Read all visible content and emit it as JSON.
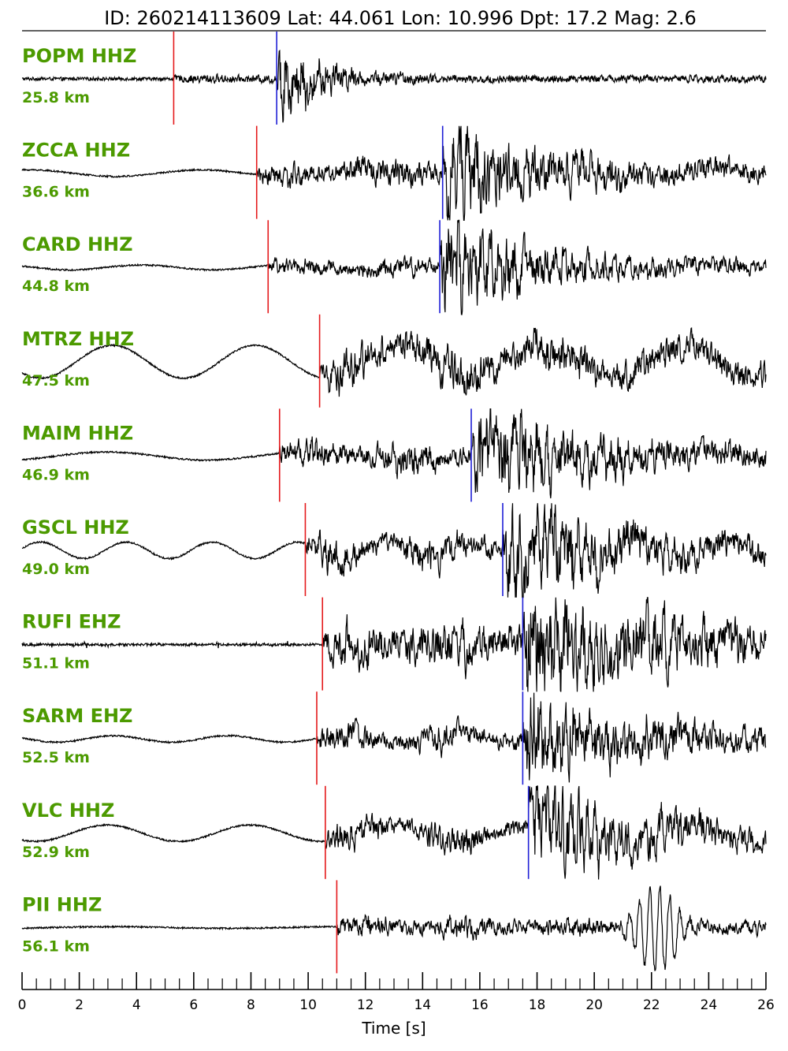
{
  "chart_data": {
    "type": "line",
    "title": "ID: 260214113609 Lat:  44.061 Lon:  10.996 Dpt:    17.2 Mag:   2.6",
    "xlabel": "Time [s]",
    "xlim": [
      0,
      26
    ],
    "x_major_ticks": [
      0,
      2,
      4,
      6,
      8,
      10,
      12,
      14,
      16,
      18,
      20,
      22,
      24,
      26
    ],
    "x_tick_labels": [
      "0",
      "2",
      "4",
      "6",
      "8",
      "10",
      "12",
      "14",
      "16",
      "18",
      "20",
      "22",
      "24",
      "26"
    ],
    "x_minor_step": 0.5,
    "colors": {
      "waveform": "#000000",
      "p_pick": "#e41a1c",
      "s_pick": "#1f1fd6",
      "label": "#4c9a00"
    },
    "traces": [
      {
        "station": "POPM HHZ",
        "distance": "25.8 km",
        "p_time": 5.3,
        "s_time": 8.9,
        "noise": 0.04,
        "p_amp": 0.08,
        "s_amp": 1.0,
        "s_decay": 1.4,
        "coda": 0.12,
        "osc_amp": 0.0,
        "osc_period": 5.0,
        "spiky": false
      },
      {
        "station": "ZCCA HHZ",
        "distance": "36.6 km",
        "p_time": 8.2,
        "s_time": 14.7,
        "noise": 0.02,
        "p_amp": 0.3,
        "s_amp": 0.95,
        "s_decay": 3.0,
        "coda": 0.5,
        "osc_amp": 0.08,
        "osc_period": 6.0,
        "spiky": false
      },
      {
        "station": "CARD HHZ",
        "distance": "44.8 km",
        "p_time": 8.6,
        "s_time": 14.6,
        "noise": 0.02,
        "p_amp": 0.22,
        "s_amp": 0.95,
        "s_decay": 3.5,
        "coda": 0.3,
        "osc_amp": 0.06,
        "osc_period": 5.0,
        "spiky": false
      },
      {
        "station": "MTRZ HHZ",
        "distance": "47.5 km",
        "p_time": 10.4,
        "s_time": null,
        "noise": 0.02,
        "p_amp": 0.45,
        "s_amp": 0.0,
        "s_decay": 3.0,
        "coda": 0.75,
        "osc_amp": 0.4,
        "osc_period": 5.0,
        "spiky": false
      },
      {
        "station": "MAIM HHZ",
        "distance": "46.9 km",
        "p_time": 9.0,
        "s_time": 15.7,
        "noise": 0.02,
        "p_amp": 0.4,
        "s_amp": 0.95,
        "s_decay": 4.0,
        "coda": 0.45,
        "osc_amp": 0.1,
        "osc_period": 7.0,
        "spiky": false
      },
      {
        "station": "GSCL HHZ",
        "distance": "49.0 km",
        "p_time": 9.9,
        "s_time": 16.8,
        "noise": 0.02,
        "p_amp": 0.45,
        "s_amp": 0.95,
        "s_decay": 4.0,
        "coda": 0.45,
        "osc_amp": 0.2,
        "osc_period": 3.0,
        "spiky": false
      },
      {
        "station": "RUFI EHZ",
        "distance": "51.1 km",
        "p_time": 10.5,
        "s_time": 17.5,
        "noise": 0.03,
        "p_amp": 0.5,
        "s_amp": 0.9,
        "s_decay": 5.0,
        "coda": 0.75,
        "osc_amp": 0.0,
        "osc_period": 5.0,
        "spiky": true
      },
      {
        "station": "SARM EHZ",
        "distance": "52.5 km",
        "p_time": 10.3,
        "s_time": 17.5,
        "noise": 0.02,
        "p_amp": 0.4,
        "s_amp": 0.95,
        "s_decay": 4.0,
        "coda": 0.35,
        "osc_amp": 0.08,
        "osc_period": 4.0,
        "spiky": false
      },
      {
        "station": "VLC HHZ",
        "distance": "52.9 km",
        "p_time": 10.6,
        "s_time": 17.7,
        "noise": 0.02,
        "p_amp": 0.4,
        "s_amp": 0.95,
        "s_decay": 4.0,
        "coda": 0.35,
        "osc_amp": 0.2,
        "osc_period": 5.0,
        "spiky": false
      },
      {
        "station": "PII HHZ",
        "distance": "56.1 km",
        "p_time": 11.0,
        "s_time": null,
        "noise": 0.02,
        "p_amp": 0.3,
        "s_amp": 0.0,
        "s_decay": 3.0,
        "coda": 0.3,
        "osc_amp": 0.02,
        "osc_period": 8.0,
        "spiky": false,
        "burst_time": 22.2,
        "burst_amp": 1.0
      }
    ]
  }
}
